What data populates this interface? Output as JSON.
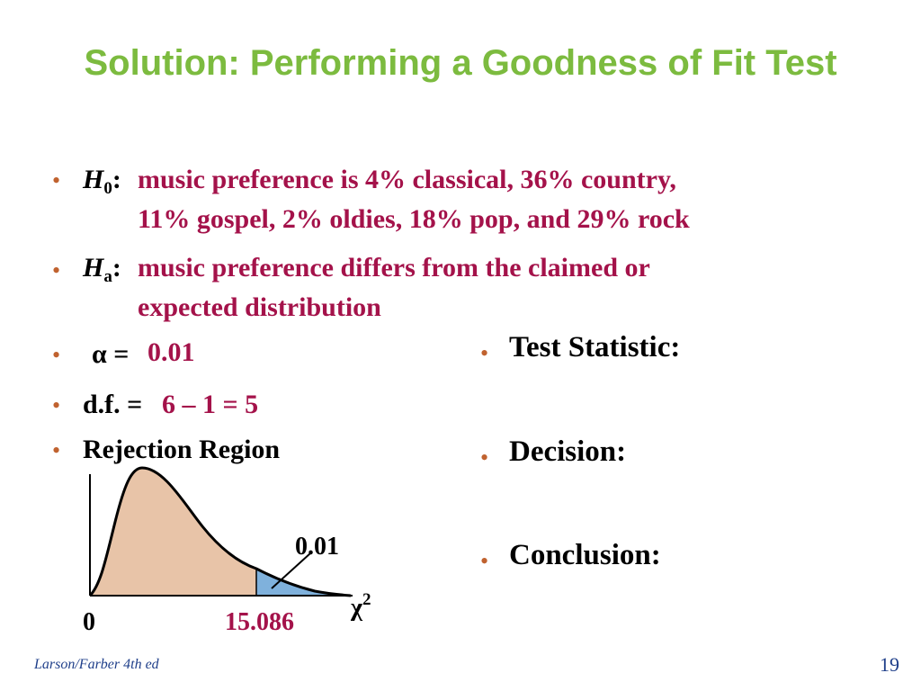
{
  "slide": {
    "title": "Solution: Performing a Goodness of Fit Test",
    "null_hypothesis": {
      "symbol": "H",
      "subscript": "0",
      "colon": ":",
      "line1": "music preference is 4% classical, 36% country,",
      "line2": "11% gospel, 2% oldies, 18% pop, and 29% rock"
    },
    "alt_hypothesis": {
      "symbol": "H",
      "subscript": "a",
      "colon": ":",
      "line1": "music preference differs from the claimed or",
      "line2": "expected distribution"
    },
    "alpha": {
      "label": "α =",
      "value": "0.01"
    },
    "df": {
      "label": "d.f. =",
      "value": "6 – 1 = 5"
    },
    "rejection_region_label": "Rejection Region",
    "right_items": {
      "test_statistic": "Test Statistic:",
      "decision": "Decision:",
      "conclusion": "Conclusion:"
    },
    "bullet_char": "•",
    "footer": {
      "source": "Larson/Farber 4th ed",
      "page": "19"
    }
  },
  "chart_data": {
    "type": "area",
    "x_origin_label": "0",
    "critical_value": "15.086",
    "tail_area_label": "0.01",
    "axis_symbol": "χ",
    "axis_superscript": "2",
    "colors": {
      "body_fill": "#e8c4a8",
      "tail_fill": "#7fb1dc",
      "curve": "#000000",
      "critical_value_text": "#a4124a"
    }
  }
}
